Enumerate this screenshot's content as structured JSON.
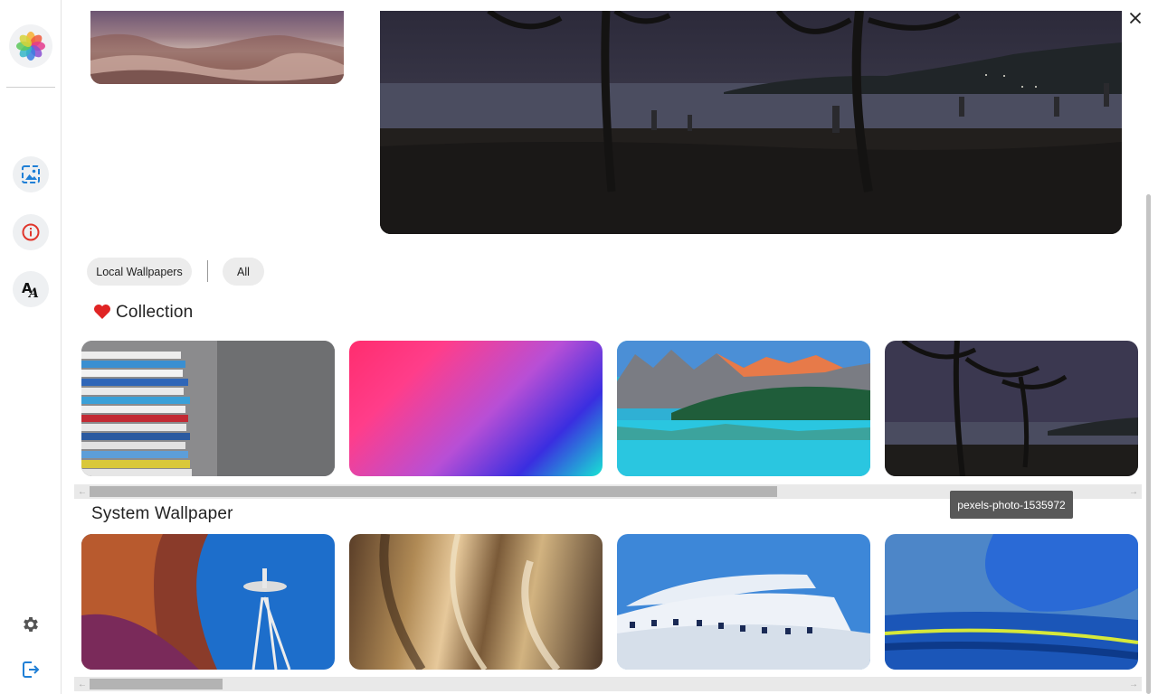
{
  "sidebar": {
    "logo_icon": "photos-flower-icon",
    "nav": [
      {
        "name": "wallpaper-nav-button",
        "icon": "wallpaper-icon",
        "color": "#1f7fd6"
      },
      {
        "name": "info-nav-button",
        "icon": "info-icon",
        "color": "#e0362c"
      },
      {
        "name": "font-nav-button",
        "icon": "font-icon",
        "color": "#111111"
      }
    ],
    "bottom": [
      {
        "name": "settings-button",
        "icon": "gear-icon"
      },
      {
        "name": "logout-button",
        "icon": "logout-icon",
        "color": "#1f7fd6"
      }
    ]
  },
  "window": {
    "minimize_icon": "minimize-icon",
    "restore_icon": "restore-icon",
    "close_icon": "close-icon"
  },
  "filters": {
    "local_label": "Local Wallpapers",
    "all_label": "All"
  },
  "collection": {
    "heart_color": "#e02424",
    "title": "Collection",
    "items": [
      {
        "name": "books-wallpaper"
      },
      {
        "name": "gradient-wallpaper"
      },
      {
        "name": "lake-mountains-wallpaper"
      },
      {
        "name": "beach-palms-wallpaper"
      }
    ]
  },
  "system": {
    "title": "System Wallpaper",
    "items": [
      {
        "name": "space-needle-wallpaper"
      },
      {
        "name": "metal-abstract-wallpaper"
      },
      {
        "name": "white-building-wallpaper"
      },
      {
        "name": "blue-building-wallpaper"
      }
    ]
  },
  "tooltip": {
    "text": "pexels-photo-1535972"
  },
  "colors": {
    "accent": "#1f7fd6",
    "chip_bg": "#ececec"
  }
}
